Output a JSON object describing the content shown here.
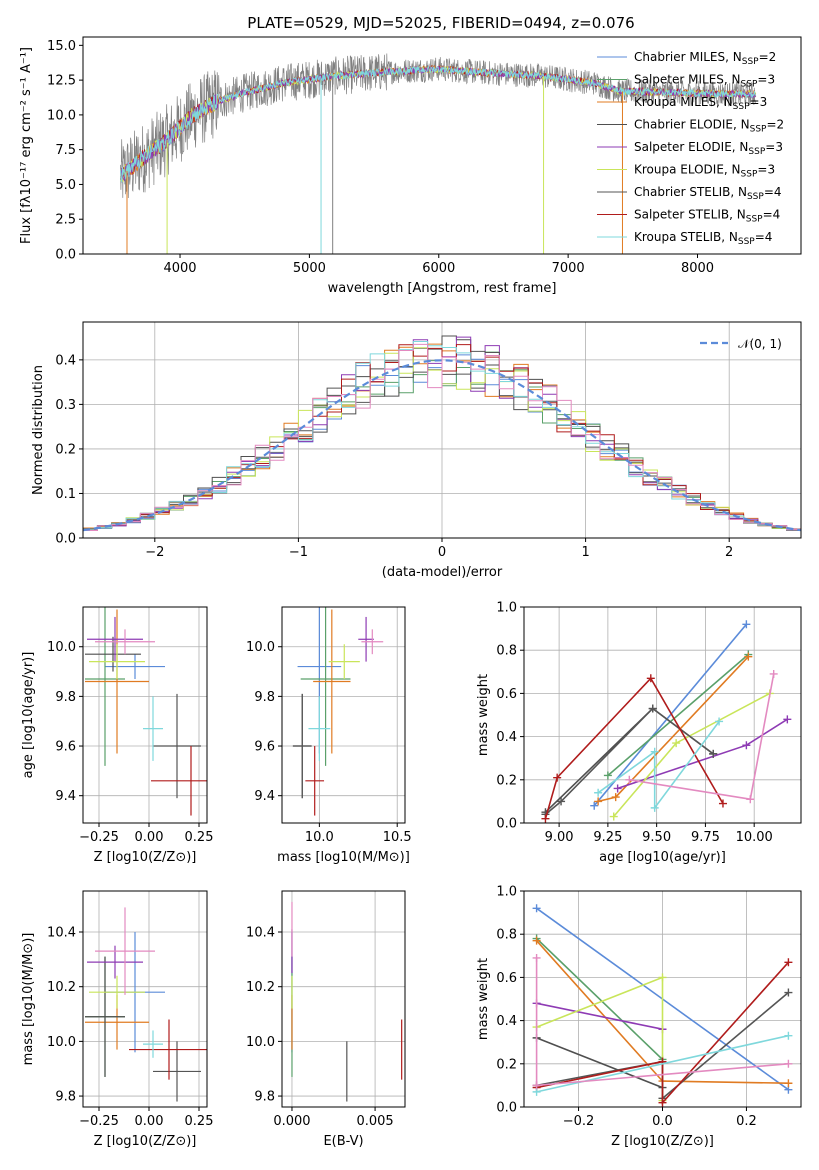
{
  "title": "PLATE=0529, MJD=52025, FIBERID=0494, z=0.076",
  "colors": {
    "chabrier_miles": "#5b8bd9",
    "salpeter_miles": "#5aa06a",
    "kroupa_miles": "#e07b22",
    "chabrier_elodie": "#4f4f4f",
    "salpeter_elodie": "#8e3bb4",
    "kroupa_elodie": "#c9e55a",
    "chabrier_stelib": "#555555",
    "salpeter_stelib": "#b01c1c",
    "kroupa_stelib": "#7fd8dc",
    "normal": "#5b8bd9",
    "spectrum": "#808080",
    "mass_pink": "#e38ac0",
    "grid": "#b0b0b0"
  },
  "chart_data": [
    {
      "type": "line",
      "panel": "spectrum",
      "title": "PLATE=0529, MJD=52025, FIBERID=0494, z=0.076",
      "xlabel": "wavelength [Angstrom, rest frame]",
      "ylabel": "Flux [fλ10⁻¹⁷ erg cm⁻² s⁻¹ A⁻¹]",
      "xlim": [
        3250,
        8800
      ],
      "ylim": [
        0,
        15.6
      ],
      "xticks": [
        "4000",
        "5000",
        "6000",
        "7000",
        "8000"
      ],
      "yticks": [
        "0.0",
        "2.5",
        "5.0",
        "7.5",
        "10.0",
        "12.5",
        "15.0"
      ],
      "grid": false,
      "legend_position": "right",
      "legend": [
        "Chabrier MILES, N_SSP=2",
        "Salpeter MILES, N_SSP=3",
        "Kroupa MILES, N_SSP=3",
        "Chabrier ELODIE, N_SSP=2",
        "Salpeter ELODIE, N_SSP=3",
        "Kroupa ELODIE, N_SSP=3",
        "Chabrier STELIB, N_SSP=4",
        "Salpeter STELIB, N_SSP=4",
        "Kroupa STELIB, N_SSP=4"
      ],
      "legend_display": [
        {
          "name": "Chabrier MILES, N",
          "sub": "SSP",
          "tail": "=2"
        },
        {
          "name": "Salpeter MILES, N",
          "sub": "SSP",
          "tail": "=3"
        },
        {
          "name": "Kroupa MILES, N",
          "sub": "SSP",
          "tail": "=3"
        },
        {
          "name": "Chabrier ELODIE, N",
          "sub": "SSP",
          "tail": "=2"
        },
        {
          "name": "Salpeter ELODIE, N",
          "sub": "SSP",
          "tail": "=3"
        },
        {
          "name": "Kroupa ELODIE, N",
          "sub": "SSP",
          "tail": "=3"
        },
        {
          "name": "Chabrier STELIB, N",
          "sub": "SSP",
          "tail": "=4"
        },
        {
          "name": "Salpeter STELIB, N",
          "sub": "SSP",
          "tail": "=4"
        },
        {
          "name": "Kroupa STELIB, N",
          "sub": "SSP",
          "tail": "=4"
        }
      ],
      "continuum": [
        [
          3540,
          5.6
        ],
        [
          3700,
          6.8
        ],
        [
          3900,
          8.2
        ],
        [
          4100,
          10.0
        ],
        [
          4300,
          11.0
        ],
        [
          4500,
          11.6
        ],
        [
          4800,
          12.3
        ],
        [
          5200,
          12.8
        ],
        [
          5600,
          13.1
        ],
        [
          6000,
          13.3
        ],
        [
          6400,
          13.0
        ],
        [
          6800,
          12.8
        ],
        [
          7200,
          12.3
        ],
        [
          7400,
          11.7
        ],
        [
          7800,
          11.6
        ],
        [
          8200,
          11.5
        ],
        [
          8450,
          11.5
        ]
      ],
      "data_range": [
        3540,
        8450
      ]
    },
    {
      "type": "line",
      "panel": "residual_histogram",
      "xlabel": "(data-model)/error",
      "ylabel": "Normed distribution",
      "xlim": [
        -2.5,
        2.5
      ],
      "ylim": [
        0,
        0.485
      ],
      "xticks": [
        "−2",
        "−1",
        "0",
        "1",
        "2"
      ],
      "yticks": [
        "0.0",
        "0.1",
        "0.2",
        "0.3",
        "0.4"
      ],
      "grid": true,
      "legend_position": "top-right",
      "legend": [
        "𝒩(0, 1)"
      ],
      "bin_width": 0.1,
      "density_profile": "normal(0,1)"
    },
    {
      "type": "scatter",
      "panel": "age_vs_Z",
      "xlabel": "Z [log10(Z/Z⊙)]",
      "ylabel": "age  [log10(age/yr)]",
      "xlim": [
        -0.33,
        0.29
      ],
      "ylim": [
        9.29,
        10.16
      ],
      "xticks": [
        "−0.25",
        "0.00",
        "0.25"
      ],
      "yticks": [
        "9.4",
        "9.6",
        "9.8",
        "10.0"
      ],
      "grid": true,
      "points": [
        {
          "model": "chabrier_miles",
          "x": -0.07,
          "xerr": 0.15,
          "y": 9.92,
          "yerr": 0.05
        },
        {
          "model": "salpeter_miles",
          "x": -0.22,
          "xerr": 0.1,
          "y": 9.87,
          "yerr": 0.35
        },
        {
          "model": "kroupa_miles",
          "x": -0.16,
          "xerr": 0.16,
          "y": 9.86,
          "yerr": 0.29
        },
        {
          "model": "chabrier_elodie",
          "x": -0.18,
          "xerr": 0.14,
          "y": 9.97,
          "yerr": 0.07
        },
        {
          "model": "salpeter_elodie",
          "x": -0.17,
          "xerr": 0.14,
          "y": 10.03,
          "yerr": 0.09
        },
        {
          "model": "kroupa_elodie",
          "x": -0.16,
          "xerr": 0.14,
          "y": 9.94,
          "yerr": 0.07
        },
        {
          "model": "chabrier_stelib",
          "x": 0.14,
          "xerr": 0.12,
          "y": 9.6,
          "yerr": 0.21
        },
        {
          "model": "salpeter_stelib",
          "x": 0.21,
          "xerr": 0.2,
          "y": 9.46,
          "yerr": 0.14
        },
        {
          "model": "kroupa_stelib",
          "x": 0.02,
          "xerr": 0.05,
          "y": 9.67,
          "yerr": 0.13
        },
        {
          "model": "mass_pink",
          "x": -0.12,
          "xerr": 0.15,
          "y": 10.02,
          "yerr": 0.05
        }
      ]
    },
    {
      "type": "scatter",
      "panel": "age_vs_mass",
      "xlabel": "mass [log10(M/M⊙)]",
      "ylabel": "",
      "xlim": [
        9.76,
        10.55
      ],
      "ylim": [
        9.29,
        10.16
      ],
      "xticks": [
        "10.0",
        "10.5"
      ],
      "yticks": [
        "9.4",
        "9.6",
        "9.8",
        "10.0"
      ],
      "grid": true,
      "points": [
        {
          "model": "chabrier_miles",
          "x": 10.0,
          "xerr": 0.14,
          "y": 9.92,
          "yerr": 0.35
        },
        {
          "model": "salpeter_miles",
          "x": 10.04,
          "xerr": 0.16,
          "y": 9.87,
          "yerr": 0.35
        },
        {
          "model": "kroupa_miles",
          "x": 10.08,
          "xerr": 0.12,
          "y": 9.86,
          "yerr": 0.29
        },
        {
          "model": "chabrier_elodie",
          "x": 9.89,
          "xerr": 0.06,
          "y": 9.6,
          "yerr": 0.21
        },
        {
          "model": "salpeter_elodie",
          "x": 10.3,
          "xerr": 0.05,
          "y": 10.03,
          "yerr": 0.09
        },
        {
          "model": "kroupa_elodie",
          "x": 10.16,
          "xerr": 0.1,
          "y": 9.94,
          "yerr": 0.07
        },
        {
          "model": "chabrier_stelib",
          "x": 9.89,
          "xerr": 0.06,
          "y": 9.6,
          "yerr": 0.21
        },
        {
          "model": "salpeter_stelib",
          "x": 9.97,
          "xerr": 0.06,
          "y": 9.46,
          "yerr": 0.14
        },
        {
          "model": "kroupa_stelib",
          "x": 10.0,
          "xerr": 0.07,
          "y": 9.67,
          "yerr": 0.13
        },
        {
          "model": "mass_pink",
          "x": 10.34,
          "xerr": 0.07,
          "y": 10.02,
          "yerr": 0.05
        }
      ]
    },
    {
      "type": "line",
      "panel": "weight_vs_age",
      "xlabel": "age  [log10(age/yr)]",
      "ylabel": "mass weight",
      "xlim": [
        8.82,
        10.24
      ],
      "ylim": [
        0,
        1
      ],
      "xticks": [
        "9.00",
        "9.25",
        "9.50",
        "9.75",
        "10.00"
      ],
      "yticks": [
        "0.0",
        "0.2",
        "0.4",
        "0.6",
        "0.8",
        "1.0"
      ],
      "grid": true,
      "series": [
        {
          "model": "chabrier_miles",
          "points": [
            [
              9.18,
              0.08
            ],
            [
              9.96,
              0.92
            ]
          ]
        },
        {
          "model": "salpeter_miles",
          "points": [
            [
              9.25,
              0.22
            ],
            [
              9.97,
              0.78
            ]
          ]
        },
        {
          "model": "kroupa_miles",
          "points": [
            [
              9.2,
              0.1
            ],
            [
              9.29,
              0.12
            ],
            [
              9.97,
              0.77
            ]
          ]
        },
        {
          "model": "chabrier_elodie",
          "points": [
            [
              8.93,
              0.05
            ],
            [
              9.48,
              0.53
            ],
            [
              9.79,
              0.32
            ]
          ]
        },
        {
          "model": "salpeter_elodie",
          "points": [
            [
              9.3,
              0.16
            ],
            [
              9.96,
              0.36
            ],
            [
              10.17,
              0.48
            ]
          ]
        },
        {
          "model": "kroupa_elodie",
          "points": [
            [
              9.28,
              0.03
            ],
            [
              9.6,
              0.37
            ],
            [
              10.08,
              0.6
            ]
          ]
        },
        {
          "model": "chabrier_stelib",
          "points": [
            [
              8.93,
              0.04
            ],
            [
              9.01,
              0.1
            ],
            [
              9.48,
              0.53
            ],
            [
              9.79,
              0.32
            ]
          ]
        },
        {
          "model": "salpeter_stelib",
          "points": [
            [
              8.93,
              0.02
            ],
            [
              8.99,
              0.21
            ],
            [
              9.47,
              0.67
            ],
            [
              9.84,
              0.09
            ]
          ]
        },
        {
          "model": "kroupa_stelib",
          "points": [
            [
              9.2,
              0.14
            ],
            [
              9.49,
              0.33
            ],
            [
              9.49,
              0.07
            ],
            [
              9.82,
              0.47
            ]
          ]
        },
        {
          "model": "mass_pink",
          "points": [
            [
              9.36,
              0.2
            ],
            [
              9.98,
              0.11
            ],
            [
              10.1,
              0.69
            ]
          ]
        }
      ]
    },
    {
      "type": "scatter",
      "panel": "mass_vs_Z",
      "xlabel": "Z [log10(Z/Z⊙)]",
      "ylabel": "mass [log10(M/M⊙)]",
      "xlim": [
        -0.33,
        0.29
      ],
      "ylim": [
        9.76,
        10.55
      ],
      "xticks": [
        "−0.25",
        "0.00",
        "0.25"
      ],
      "yticks": [
        "9.8",
        "10.0",
        "10.2",
        "10.4"
      ],
      "grid": true,
      "points": [
        {
          "model": "chabrier_miles",
          "x": -0.07,
          "xerr": 0.15,
          "y": 10.18,
          "yerr": 0.22
        },
        {
          "model": "salpeter_miles",
          "x": -0.22,
          "xerr": 0.1,
          "y": 10.09,
          "yerr": 0.22
        },
        {
          "model": "kroupa_miles",
          "x": -0.16,
          "xerr": 0.16,
          "y": 10.07,
          "yerr": 0.1
        },
        {
          "model": "chabrier_elodie",
          "x": -0.22,
          "xerr": 0.1,
          "y": 10.09,
          "yerr": 0.22
        },
        {
          "model": "salpeter_elodie",
          "x": -0.17,
          "xerr": 0.14,
          "y": 10.29,
          "yerr": 0.06
        },
        {
          "model": "kroupa_elodie",
          "x": -0.16,
          "xerr": 0.14,
          "y": 10.18,
          "yerr": 0.06
        },
        {
          "model": "chabrier_stelib",
          "x": 0.14,
          "xerr": 0.12,
          "y": 9.89,
          "yerr": 0.11
        },
        {
          "model": "salpeter_stelib",
          "x": 0.1,
          "xerr": 0.2,
          "y": 9.97,
          "yerr": 0.11
        },
        {
          "model": "kroupa_stelib",
          "x": 0.02,
          "xerr": 0.05,
          "y": 9.99,
          "yerr": 0.05
        },
        {
          "model": "mass_pink",
          "x": -0.12,
          "xerr": 0.15,
          "y": 10.33,
          "yerr": 0.16
        }
      ]
    },
    {
      "type": "scatter",
      "panel": "mass_vs_EBV",
      "xlabel": "E(B-V)",
      "ylabel": "",
      "xlim": [
        -0.0006,
        0.0068
      ],
      "ylim": [
        9.76,
        10.55
      ],
      "xticks": [
        "0.000",
        "0.005"
      ],
      "yticks": [
        "9.8",
        "10.0",
        "10.2",
        "10.4"
      ],
      "grid": true,
      "points": [
        {
          "model": "chabrier_miles",
          "x": 0.0,
          "y": 10.18,
          "yerr": 0.22
        },
        {
          "model": "salpeter_miles",
          "x": 0.0,
          "y": 10.09,
          "yerr": 0.22
        },
        {
          "model": "kroupa_miles",
          "x": 0.0,
          "y": 10.07,
          "yerr": 0.1
        },
        {
          "model": "salpeter_elodie",
          "x": 0.0,
          "y": 10.33,
          "yerr": 0.08
        },
        {
          "model": "kroupa_elodie",
          "x": 0.0,
          "y": 10.18,
          "yerr": 0.06
        },
        {
          "model": "chabrier_stelib",
          "x": 0.0033,
          "y": 9.89,
          "yerr": 0.11
        },
        {
          "model": "salpeter_stelib",
          "x": 0.0066,
          "y": 9.97,
          "yerr": 0.11
        },
        {
          "model": "mass_pink",
          "x": 0.0,
          "y": 10.41,
          "yerr": 0.1
        }
      ]
    },
    {
      "type": "line",
      "panel": "weight_vs_Z",
      "xlabel": "Z [log10(Z/Z⊙)]",
      "ylabel": "mass weight",
      "xlim": [
        -0.33,
        0.33
      ],
      "ylim": [
        0,
        1
      ],
      "xticks": [
        "−0.2",
        "0.0",
        "0.2"
      ],
      "yticks": [
        "0.0",
        "0.2",
        "0.4",
        "0.6",
        "0.8",
        "1.0"
      ],
      "grid": true,
      "series": [
        {
          "model": "chabrier_miles",
          "points": [
            [
              -0.3,
              0.92
            ],
            [
              0.3,
              0.08
            ]
          ]
        },
        {
          "model": "salpeter_miles",
          "points": [
            [
              -0.3,
              0.78
            ],
            [
              0.0,
              0.22
            ]
          ]
        },
        {
          "model": "kroupa_miles",
          "points": [
            [
              -0.3,
              0.77
            ],
            [
              0.0,
              0.12
            ],
            [
              0.3,
              0.11
            ]
          ]
        },
        {
          "model": "chabrier_elodie",
          "points": [
            [
              -0.3,
              0.32
            ],
            [
              0.0,
              0.09
            ]
          ]
        },
        {
          "model": "salpeter_elodie",
          "points": [
            [
              -0.3,
              0.48
            ],
            [
              0.0,
              0.36
            ]
          ]
        },
        {
          "model": "kroupa_elodie",
          "points": [
            [
              -0.3,
              0.37
            ],
            [
              0.0,
              0.6
            ],
            [
              0.0,
              0.03
            ]
          ]
        },
        {
          "model": "chabrier_stelib",
          "points": [
            [
              -0.3,
              0.1
            ],
            [
              0.0,
              0.21
            ],
            [
              0.0,
              0.04
            ],
            [
              0.3,
              0.53
            ]
          ]
        },
        {
          "model": "salpeter_stelib",
          "points": [
            [
              -0.3,
              0.09
            ],
            [
              0.0,
              0.21
            ],
            [
              0.0,
              0.02
            ],
            [
              0.3,
              0.67
            ]
          ]
        },
        {
          "model": "kroupa_stelib",
          "points": [
            [
              -0.3,
              0.07
            ],
            [
              0.3,
              0.33
            ]
          ]
        },
        {
          "model": "mass_pink",
          "points": [
            [
              -0.3,
              0.69
            ],
            [
              -0.3,
              0.1
            ],
            [
              0.3,
              0.2
            ]
          ]
        }
      ]
    }
  ]
}
